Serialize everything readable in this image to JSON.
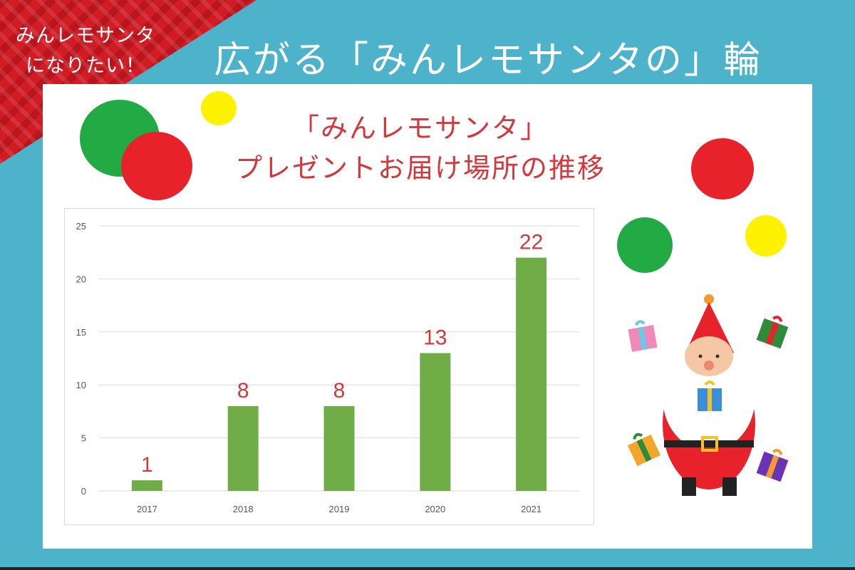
{
  "banner": {
    "line1": "みんレモサンタ",
    "line2": "になりたい！"
  },
  "page": {
    "title": "広がる「みんレモサンタの」輪"
  },
  "chart_data": {
    "type": "bar",
    "title_line1": "「みんレモサンタ」",
    "title_line2": "プレゼントお届け場所の推移",
    "categories": [
      "2017",
      "2018",
      "2019",
      "2020",
      "2021"
    ],
    "values": [
      1,
      8,
      8,
      13,
      22
    ],
    "y_ticks": [
      "0",
      "5",
      "10",
      "15",
      "20",
      "25"
    ],
    "ylim": [
      0,
      25
    ],
    "grid": true,
    "bar_color": "#70ad47",
    "label_color": "#d5373c"
  },
  "decor": {
    "colors": {
      "green": "#22aa44",
      "red": "#e8222b",
      "yellow": "#fff200"
    }
  }
}
